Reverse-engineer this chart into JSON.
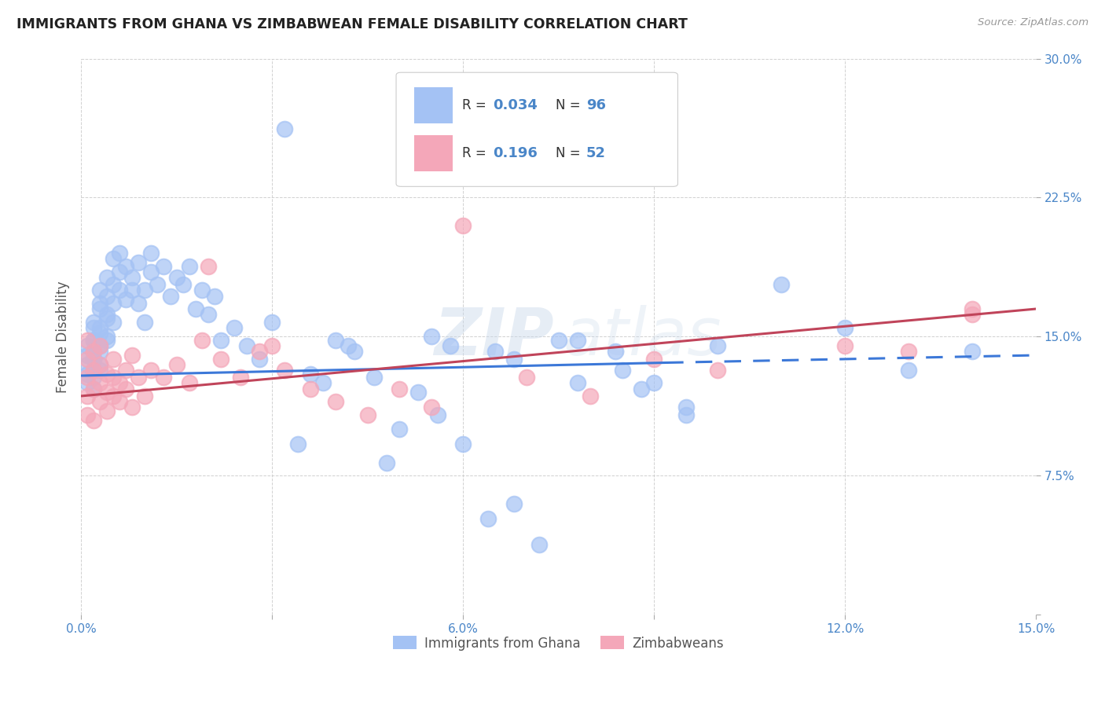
{
  "title": "IMMIGRANTS FROM GHANA VS ZIMBABWEAN FEMALE DISABILITY CORRELATION CHART",
  "source": "Source: ZipAtlas.com",
  "ylabel": "Female Disability",
  "legend_label1": "Immigrants from Ghana",
  "legend_label2": "Zimbabweans",
  "R1": 0.034,
  "N1": 96,
  "R2": 0.196,
  "N2": 52,
  "xlim": [
    0.0,
    0.15
  ],
  "ylim": [
    0.0,
    0.3
  ],
  "xticks": [
    0.0,
    0.03,
    0.06,
    0.09,
    0.12,
    0.15
  ],
  "yticks": [
    0.0,
    0.075,
    0.15,
    0.225,
    0.3
  ],
  "ytick_labels": [
    "",
    "7.5%",
    "15.0%",
    "22.5%",
    "30.0%"
  ],
  "xtick_labels": [
    "0.0%",
    "",
    "6.0%",
    "",
    "12.0%",
    "15.0%"
  ],
  "color_blue": "#a4c2f4",
  "color_pink": "#f4a7b9",
  "color_blue_line": "#3c78d8",
  "color_pink_line": "#c0445a",
  "color_axis": "#4a86c8",
  "background_color": "#ffffff",
  "watermark1": "ZIP",
  "watermark2": "atlas",
  "ghana_x": [
    0.001,
    0.001,
    0.001,
    0.001,
    0.001,
    0.002,
    0.002,
    0.002,
    0.002,
    0.002,
    0.002,
    0.002,
    0.002,
    0.002,
    0.002,
    0.003,
    0.003,
    0.003,
    0.003,
    0.003,
    0.003,
    0.003,
    0.003,
    0.003,
    0.004,
    0.004,
    0.004,
    0.004,
    0.004,
    0.004,
    0.005,
    0.005,
    0.005,
    0.005,
    0.006,
    0.006,
    0.006,
    0.007,
    0.007,
    0.008,
    0.008,
    0.009,
    0.009,
    0.01,
    0.01,
    0.011,
    0.011,
    0.012,
    0.013,
    0.014,
    0.015,
    0.016,
    0.017,
    0.018,
    0.019,
    0.02,
    0.021,
    0.022,
    0.024,
    0.026,
    0.028,
    0.03,
    0.032,
    0.034,
    0.036,
    0.038,
    0.04,
    0.043,
    0.046,
    0.05,
    0.053,
    0.056,
    0.06,
    0.064,
    0.068,
    0.072,
    0.078,
    0.084,
    0.09,
    0.095,
    0.042,
    0.055,
    0.065,
    0.075,
    0.085,
    0.1,
    0.11,
    0.12,
    0.13,
    0.14,
    0.095,
    0.048,
    0.058,
    0.068,
    0.078,
    0.088
  ],
  "ghana_y": [
    0.13,
    0.125,
    0.14,
    0.145,
    0.135,
    0.128,
    0.138,
    0.148,
    0.155,
    0.142,
    0.132,
    0.122,
    0.158,
    0.148,
    0.138,
    0.135,
    0.145,
    0.155,
    0.165,
    0.142,
    0.132,
    0.175,
    0.168,
    0.152,
    0.16,
    0.15,
    0.172,
    0.182,
    0.162,
    0.148,
    0.168,
    0.158,
    0.178,
    0.192,
    0.175,
    0.185,
    0.195,
    0.17,
    0.188,
    0.182,
    0.175,
    0.19,
    0.168,
    0.175,
    0.158,
    0.185,
    0.195,
    0.178,
    0.188,
    0.172,
    0.182,
    0.178,
    0.188,
    0.165,
    0.175,
    0.162,
    0.172,
    0.148,
    0.155,
    0.145,
    0.138,
    0.158,
    0.262,
    0.092,
    0.13,
    0.125,
    0.148,
    0.142,
    0.128,
    0.1,
    0.12,
    0.108,
    0.092,
    0.052,
    0.06,
    0.038,
    0.148,
    0.142,
    0.125,
    0.108,
    0.145,
    0.15,
    0.142,
    0.148,
    0.132,
    0.145,
    0.178,
    0.155,
    0.132,
    0.142,
    0.112,
    0.082,
    0.145,
    0.138,
    0.125,
    0.122
  ],
  "zimb_x": [
    0.001,
    0.001,
    0.001,
    0.001,
    0.001,
    0.002,
    0.002,
    0.002,
    0.002,
    0.003,
    0.003,
    0.003,
    0.003,
    0.004,
    0.004,
    0.004,
    0.005,
    0.005,
    0.005,
    0.006,
    0.006,
    0.007,
    0.007,
    0.008,
    0.008,
    0.009,
    0.01,
    0.011,
    0.013,
    0.015,
    0.017,
    0.019,
    0.022,
    0.025,
    0.028,
    0.032,
    0.036,
    0.04,
    0.045,
    0.05,
    0.055,
    0.06,
    0.07,
    0.08,
    0.09,
    0.1,
    0.12,
    0.13,
    0.14,
    0.14,
    0.02,
    0.03
  ],
  "zimb_y": [
    0.118,
    0.128,
    0.138,
    0.148,
    0.108,
    0.122,
    0.132,
    0.142,
    0.105,
    0.125,
    0.135,
    0.115,
    0.145,
    0.13,
    0.12,
    0.11,
    0.128,
    0.138,
    0.118,
    0.125,
    0.115,
    0.132,
    0.122,
    0.14,
    0.112,
    0.128,
    0.118,
    0.132,
    0.128,
    0.135,
    0.125,
    0.148,
    0.138,
    0.128,
    0.142,
    0.132,
    0.122,
    0.115,
    0.108,
    0.122,
    0.112,
    0.21,
    0.128,
    0.118,
    0.138,
    0.132,
    0.145,
    0.142,
    0.162,
    0.165,
    0.188,
    0.145
  ],
  "blue_line_x0": 0.0,
  "blue_line_x_solid_end": 0.092,
  "blue_line_x1": 0.15,
  "blue_line_y0": 0.129,
  "blue_line_y_solid_end": 0.136,
  "blue_line_y1": 0.14,
  "pink_line_x0": 0.0,
  "pink_line_x1": 0.15,
  "pink_line_y0": 0.118,
  "pink_line_y1": 0.165
}
